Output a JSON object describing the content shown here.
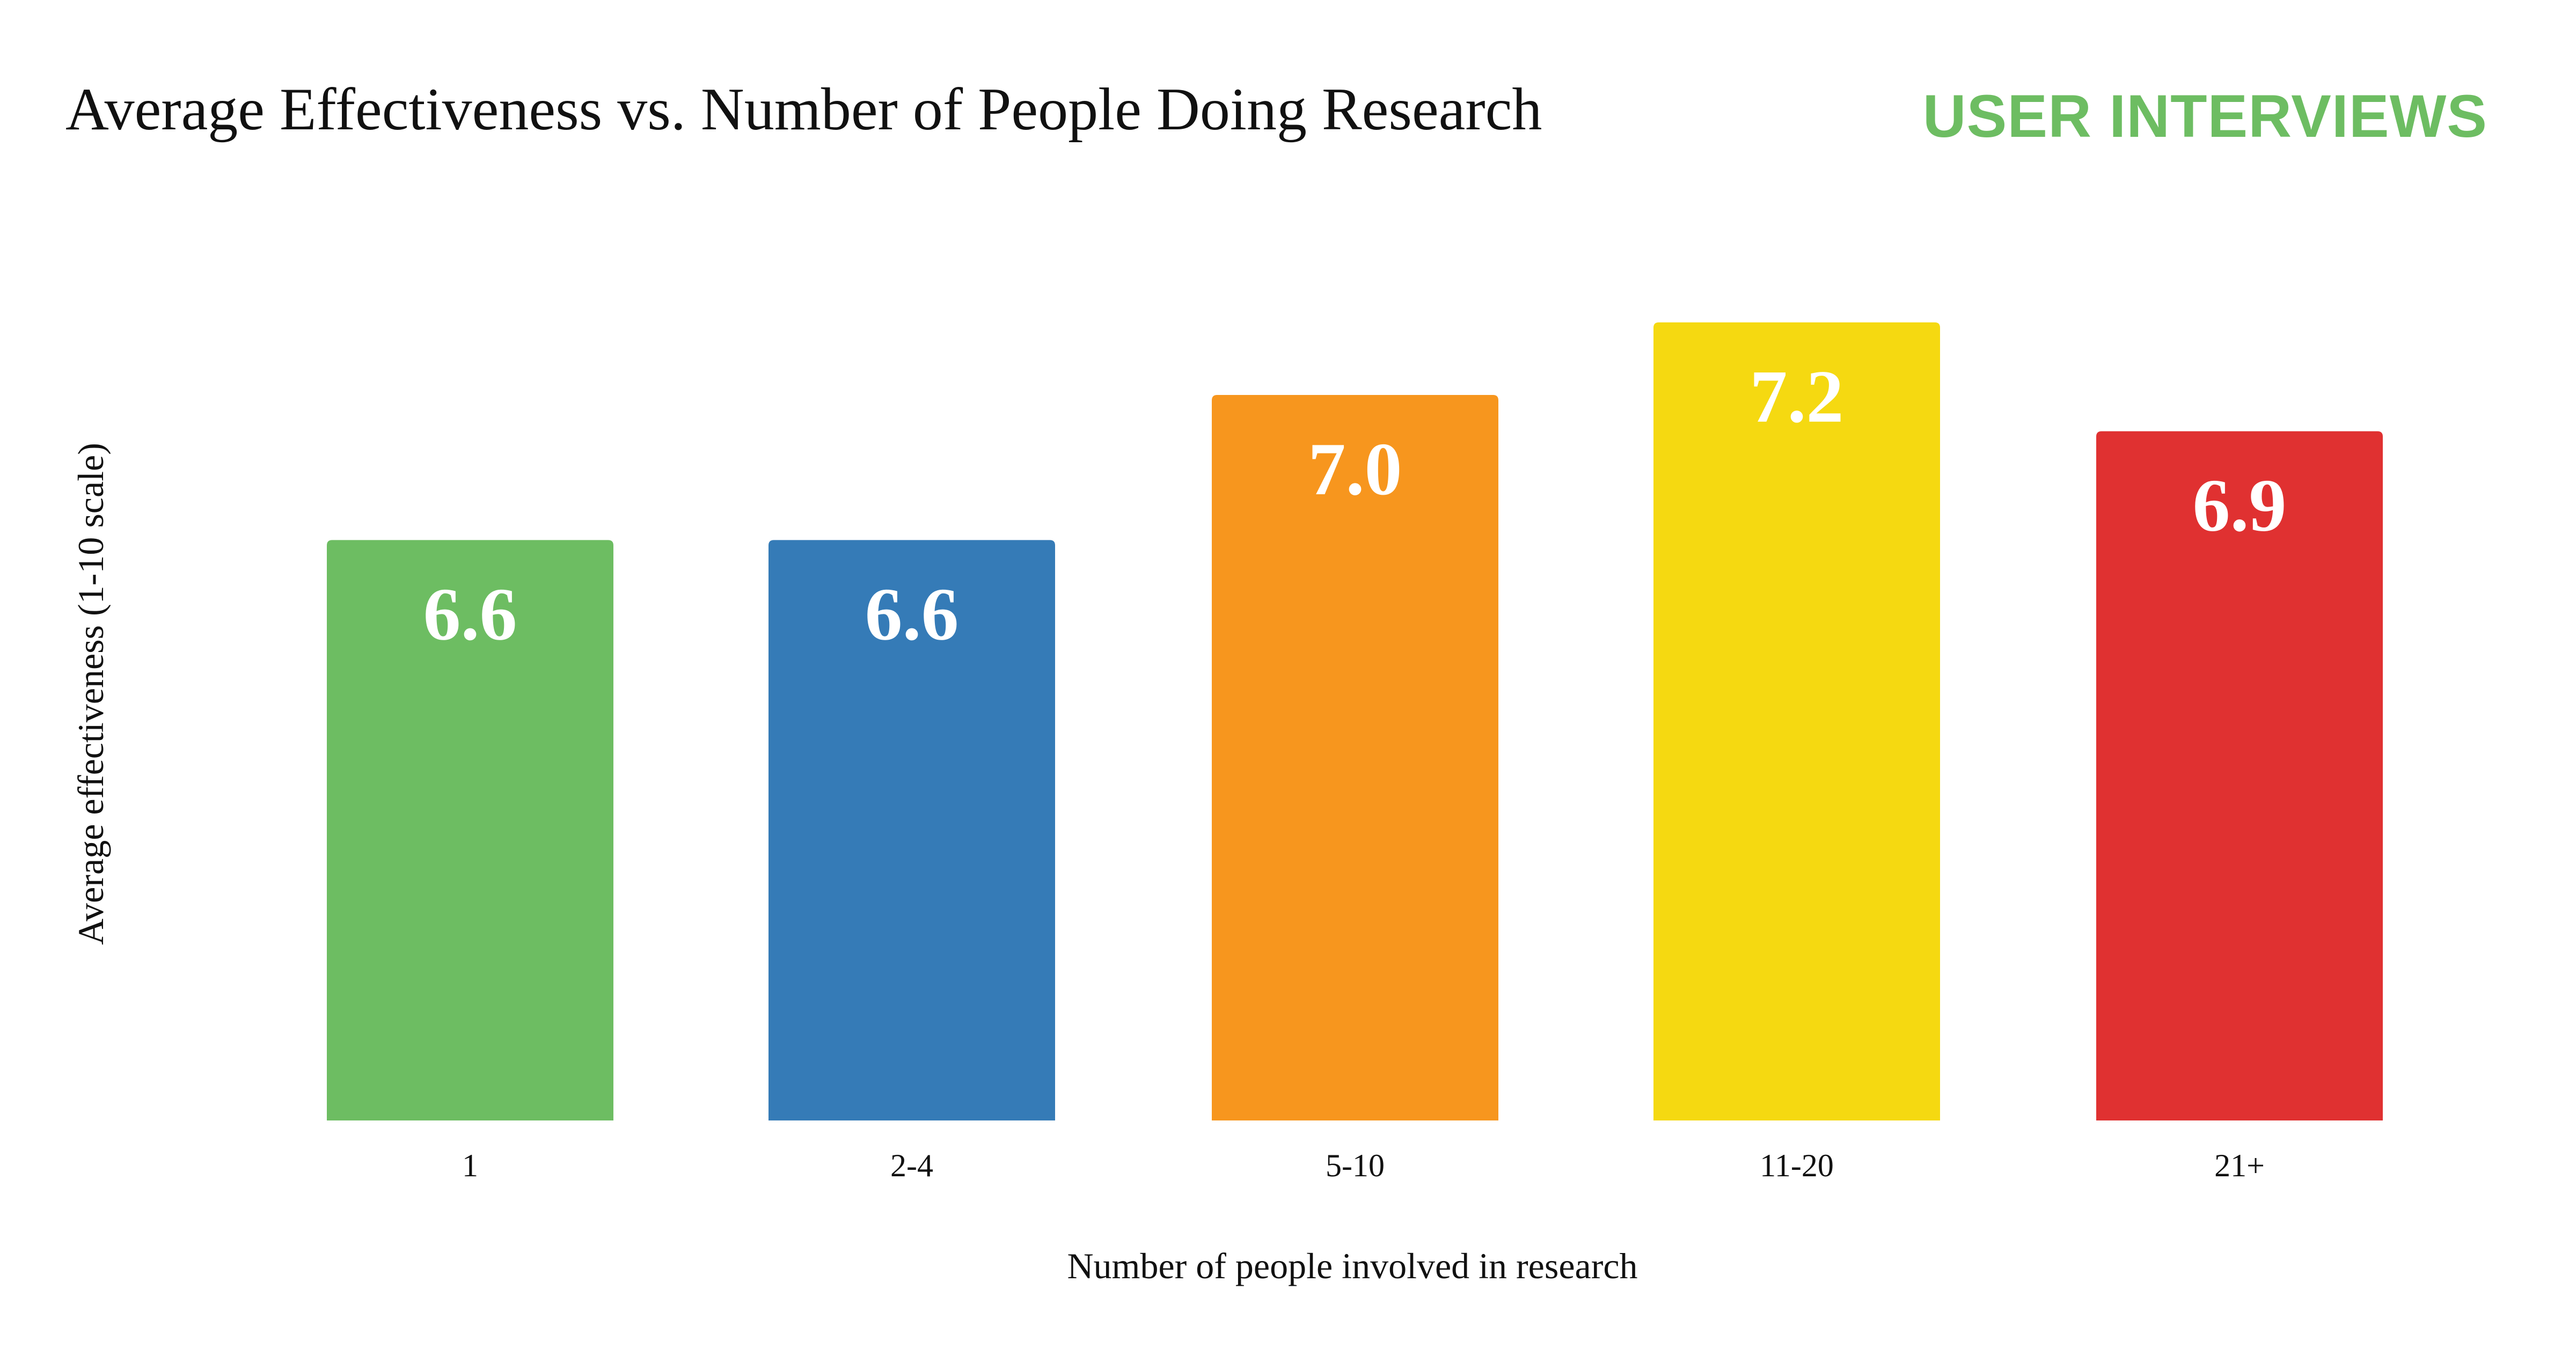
{
  "chart_data": {
    "type": "bar",
    "title": "Average Effectiveness vs. Number of People Doing Research",
    "xlabel": "Number of people involved in research",
    "ylabel": "Average effectiveness (1-10 scale)",
    "categories": [
      "1",
      "2-4",
      "5-10",
      "11-20",
      "21+"
    ],
    "values": [
      6.6,
      6.6,
      7.0,
      7.2,
      6.9
    ],
    "data_labels": [
      "6.6",
      "6.6",
      "7.0",
      "7.2",
      "6.9"
    ],
    "colors": [
      "#6dbd62",
      "#357bb7",
      "#f7961e",
      "#f5d911",
      "#e03131"
    ],
    "ylim": [
      5,
      7.5
    ],
    "grid": false,
    "legend": "none"
  },
  "branding": {
    "logo_text": "USER INTERVIEWS",
    "logo_color": "#6dbd62"
  }
}
